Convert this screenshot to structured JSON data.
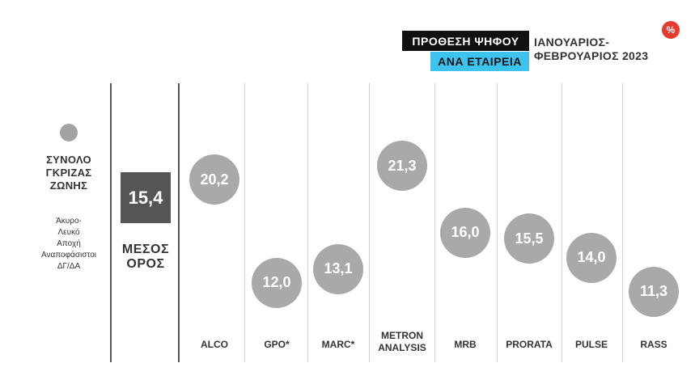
{
  "header": {
    "title_line1": "ΠΡΟΘΕΣΗ ΨΗΦΟΥ",
    "title_line2": "ΑΝΑ ΕΤΑΙΡΕΙΑ",
    "date_line1": "ΙΑΝΟΥΑΡΙΟΣ-",
    "date_line2": "ΦΕΒΡΟΥΑΡΙΟΣ 2023",
    "badge": "%"
  },
  "legend": {
    "title_line1": "ΣΥΝΟΛΟ",
    "title_line2": "ΓΚΡΙΖΑΣ",
    "title_line3": "ΖΩΝΗΣ",
    "note_line1": "Άκυρο-",
    "note_line2": "Λευκό",
    "note_line3": "Αποχή",
    "note_line4": "Αναποφάσιστοι",
    "note_line5": "ΔΓ/ΔΑ"
  },
  "average": {
    "value": "15,4",
    "label_line1": "ΜΕΣΟΣ",
    "label_line2": "ΟΡΟΣ"
  },
  "colors": {
    "bubble": "#a9a9a9",
    "average_box": "#555555",
    "header_black": "#111111",
    "header_blue": "#3ec3ee",
    "badge": "#e63a2e"
  },
  "chart_data": {
    "type": "scatter",
    "categories": [
      "ALCO",
      "GPO*",
      "MARC*",
      "METRON ANALYSIS",
      "MRB",
      "PRORATA",
      "PULSE",
      "RASS"
    ],
    "values": [
      20.2,
      12.0,
      13.1,
      21.3,
      16.0,
      15.5,
      14.0,
      11.3
    ],
    "labels": [
      "20,2",
      "12,0",
      "13,1",
      "21,3",
      "16,0",
      "15,5",
      "14,0",
      "11,3"
    ],
    "category_lines": [
      [
        "ALCO"
      ],
      [
        "GPO*"
      ],
      [
        "MARC*"
      ],
      [
        "METRON",
        "ANALYSIS"
      ],
      [
        "MRB"
      ],
      [
        "PRORATA"
      ],
      [
        "PULSE"
      ],
      [
        "RASS"
      ]
    ],
    "mean": 15.4,
    "ylim": [
      10.7,
      22.2
    ]
  }
}
